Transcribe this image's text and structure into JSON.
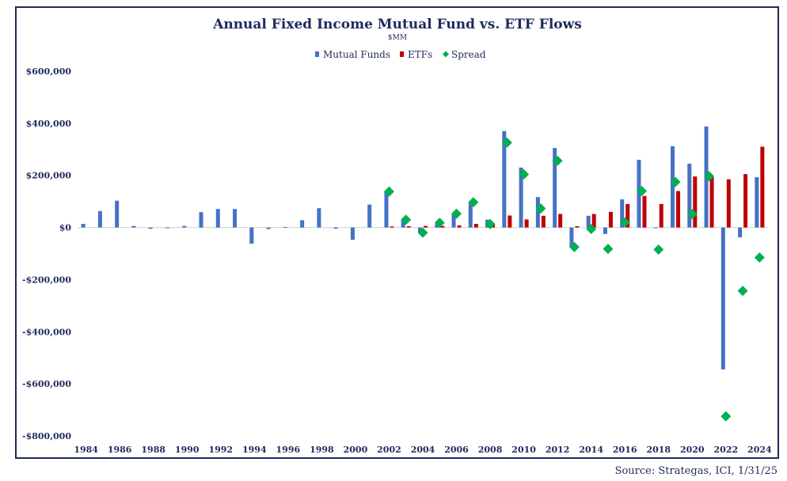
{
  "source": "Source: Strategas, ICI, 1/31/25",
  "chart_data": {
    "type": "bar",
    "title": "Annual Fixed Income Mutual Fund vs. ETF Flows",
    "subtitle": "$MM",
    "legend_position": "top-center",
    "grid": false,
    "ylim": [
      -800000,
      600000
    ],
    "y_ticks": [
      -800000,
      -600000,
      -400000,
      -200000,
      0,
      200000,
      400000,
      600000
    ],
    "y_tick_labels": [
      "-$800,000",
      "-$600,000",
      "-$400,000",
      "-$200,000",
      "$0",
      "$200,000",
      "$400,000",
      "$600,000"
    ],
    "x_tick_labels": [
      "1984",
      "1986",
      "1988",
      "1990",
      "1992",
      "1994",
      "1996",
      "1998",
      "2000",
      "2002",
      "2004",
      "2006",
      "2008",
      "2010",
      "2012",
      "2014",
      "2016",
      "2018",
      "2020",
      "2022",
      "2024"
    ],
    "categories": [
      1984,
      1985,
      1986,
      1987,
      1988,
      1989,
      1990,
      1991,
      1992,
      1993,
      1994,
      1995,
      1996,
      1997,
      1998,
      1999,
      2000,
      2001,
      2002,
      2003,
      2004,
      2005,
      2006,
      2007,
      2008,
      2009,
      2010,
      2011,
      2012,
      2013,
      2014,
      2015,
      2016,
      2017,
      2018,
      2019,
      2020,
      2021,
      2022,
      2023,
      2024
    ],
    "series": [
      {
        "name": "Mutual Funds",
        "type": "bar",
        "color": "#4472c4",
        "values": [
          14000,
          63000,
          103000,
          6000,
          -5000,
          -2000,
          6000,
          59000,
          71000,
          71000,
          -62000,
          -6000,
          2000,
          28000,
          74000,
          -5000,
          -47000,
          88000,
          140000,
          33000,
          -20000,
          12000,
          55000,
          96000,
          30000,
          370000,
          230000,
          117000,
          305000,
          -75000,
          45000,
          -25000,
          108000,
          260000,
          -3000,
          312000,
          245000,
          388000,
          -545000,
          -38000,
          193000
        ]
      },
      {
        "name": "ETFs",
        "type": "bar",
        "color": "#c00000",
        "values": [
          0,
          0,
          0,
          0,
          0,
          0,
          0,
          0,
          0,
          0,
          0,
          0,
          0,
          0,
          0,
          0,
          0,
          0,
          4000,
          5000,
          6000,
          6000,
          8000,
          14000,
          12000,
          46000,
          31000,
          45000,
          52000,
          5000,
          52000,
          60000,
          90000,
          121000,
          90000,
          140000,
          196000,
          196000,
          185000,
          205000,
          310000
        ]
      },
      {
        "name": "Spread",
        "type": "scatter",
        "color": "#00b050",
        "values": [
          null,
          null,
          null,
          null,
          null,
          null,
          null,
          null,
          null,
          null,
          null,
          null,
          null,
          null,
          null,
          null,
          null,
          null,
          138000,
          30000,
          -20000,
          18000,
          53000,
          97000,
          13000,
          326000,
          204000,
          73000,
          256000,
          -75000,
          -6000,
          -82000,
          20000,
          140000,
          -85000,
          175000,
          52000,
          197000,
          -725000,
          -243000,
          -115000
        ]
      }
    ]
  }
}
